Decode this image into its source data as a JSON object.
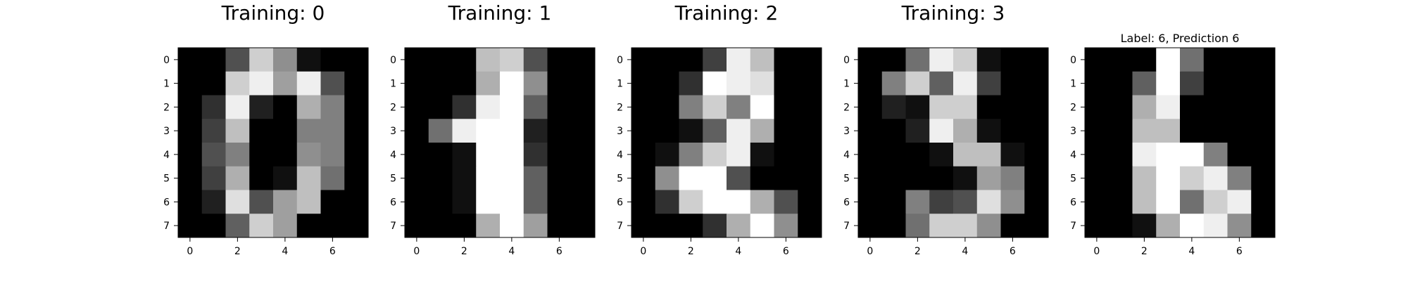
{
  "chart_data": [
    {
      "type": "heatmap",
      "title": "Training: 0",
      "xlabel": "",
      "ylabel": "",
      "colormap": "gray_r",
      "xticks": [
        0,
        2,
        4,
        6
      ],
      "yticks": [
        0,
        1,
        2,
        3,
        4,
        5,
        6,
        7
      ],
      "grid": false,
      "values": [
        [
          0,
          0,
          5,
          13,
          9,
          1,
          0,
          0
        ],
        [
          0,
          0,
          13,
          15,
          10,
          15,
          5,
          0
        ],
        [
          0,
          3,
          15,
          2,
          0,
          11,
          8,
          0
        ],
        [
          0,
          4,
          12,
          0,
          0,
          8,
          8,
          0
        ],
        [
          0,
          5,
          8,
          0,
          0,
          9,
          8,
          0
        ],
        [
          0,
          4,
          11,
          0,
          1,
          12,
          7,
          0
        ],
        [
          0,
          2,
          14,
          5,
          10,
          12,
          0,
          0
        ],
        [
          0,
          0,
          6,
          13,
          10,
          0,
          0,
          0
        ]
      ]
    },
    {
      "type": "heatmap",
      "title": "Training: 1",
      "xlabel": "",
      "ylabel": "",
      "colormap": "gray_r",
      "xticks": [
        0,
        2,
        4,
        6
      ],
      "yticks": [
        0,
        1,
        2,
        3,
        4,
        5,
        6,
        7
      ],
      "grid": false,
      "values": [
        [
          0,
          0,
          0,
          12,
          13,
          5,
          0,
          0
        ],
        [
          0,
          0,
          0,
          11,
          16,
          9,
          0,
          0
        ],
        [
          0,
          0,
          3,
          15,
          16,
          6,
          0,
          0
        ],
        [
          0,
          7,
          15,
          16,
          16,
          2,
          0,
          0
        ],
        [
          0,
          0,
          1,
          16,
          16,
          3,
          0,
          0
        ],
        [
          0,
          0,
          1,
          16,
          16,
          6,
          0,
          0
        ],
        [
          0,
          0,
          1,
          16,
          16,
          6,
          0,
          0
        ],
        [
          0,
          0,
          0,
          11,
          16,
          10,
          0,
          0
        ]
      ]
    },
    {
      "type": "heatmap",
      "title": "Training: 2",
      "xlabel": "",
      "ylabel": "",
      "colormap": "gray_r",
      "xticks": [
        0,
        2,
        4,
        6
      ],
      "yticks": [
        0,
        1,
        2,
        3,
        4,
        5,
        6,
        7
      ],
      "grid": false,
      "values": [
        [
          0,
          0,
          0,
          4,
          15,
          12,
          0,
          0
        ],
        [
          0,
          0,
          3,
          16,
          15,
          14,
          0,
          0
        ],
        [
          0,
          0,
          8,
          13,
          8,
          16,
          0,
          0
        ],
        [
          0,
          0,
          1,
          6,
          15,
          11,
          0,
          0
        ],
        [
          0,
          1,
          8,
          13,
          15,
          1,
          0,
          0
        ],
        [
          0,
          9,
          16,
          16,
          5,
          0,
          0,
          0
        ],
        [
          0,
          3,
          13,
          16,
          16,
          11,
          5,
          0
        ],
        [
          0,
          0,
          0,
          3,
          11,
          16,
          9,
          0
        ]
      ]
    },
    {
      "type": "heatmap",
      "title": "Training: 3",
      "xlabel": "",
      "ylabel": "",
      "colormap": "gray_r",
      "xticks": [
        0,
        2,
        4,
        6
      ],
      "yticks": [
        0,
        1,
        2,
        3,
        4,
        5,
        6,
        7
      ],
      "grid": false,
      "values": [
        [
          0,
          0,
          7,
          15,
          13,
          1,
          0,
          0
        ],
        [
          0,
          8,
          13,
          6,
          15,
          4,
          0,
          0
        ],
        [
          0,
          2,
          1,
          13,
          13,
          0,
          0,
          0
        ],
        [
          0,
          0,
          2,
          15,
          11,
          1,
          0,
          0
        ],
        [
          0,
          0,
          0,
          1,
          12,
          12,
          1,
          0
        ],
        [
          0,
          0,
          0,
          0,
          1,
          10,
          8,
          0
        ],
        [
          0,
          0,
          8,
          4,
          5,
          14,
          9,
          0
        ],
        [
          0,
          0,
          7,
          13,
          13,
          9,
          0,
          0
        ]
      ]
    },
    {
      "type": "heatmap",
      "title": "Label: 6, Prediction 6",
      "xlabel": "",
      "ylabel": "",
      "colormap": "gray_r",
      "xticks": [
        0,
        2,
        4,
        6
      ],
      "yticks": [
        0,
        1,
        2,
        3,
        4,
        5,
        6,
        7
      ],
      "grid": false,
      "values": [
        [
          0,
          0,
          0,
          16,
          7,
          0,
          0,
          0
        ],
        [
          0,
          0,
          6,
          16,
          4,
          0,
          0,
          0
        ],
        [
          0,
          0,
          11,
          15,
          0,
          0,
          0,
          0
        ],
        [
          0,
          0,
          12,
          12,
          0,
          0,
          0,
          0
        ],
        [
          0,
          0,
          15,
          16,
          16,
          8,
          0,
          0
        ],
        [
          0,
          0,
          12,
          16,
          13,
          15,
          8,
          0
        ],
        [
          0,
          0,
          12,
          16,
          7,
          13,
          15,
          0
        ],
        [
          0,
          0,
          1,
          11,
          16,
          15,
          9,
          0
        ]
      ]
    }
  ]
}
